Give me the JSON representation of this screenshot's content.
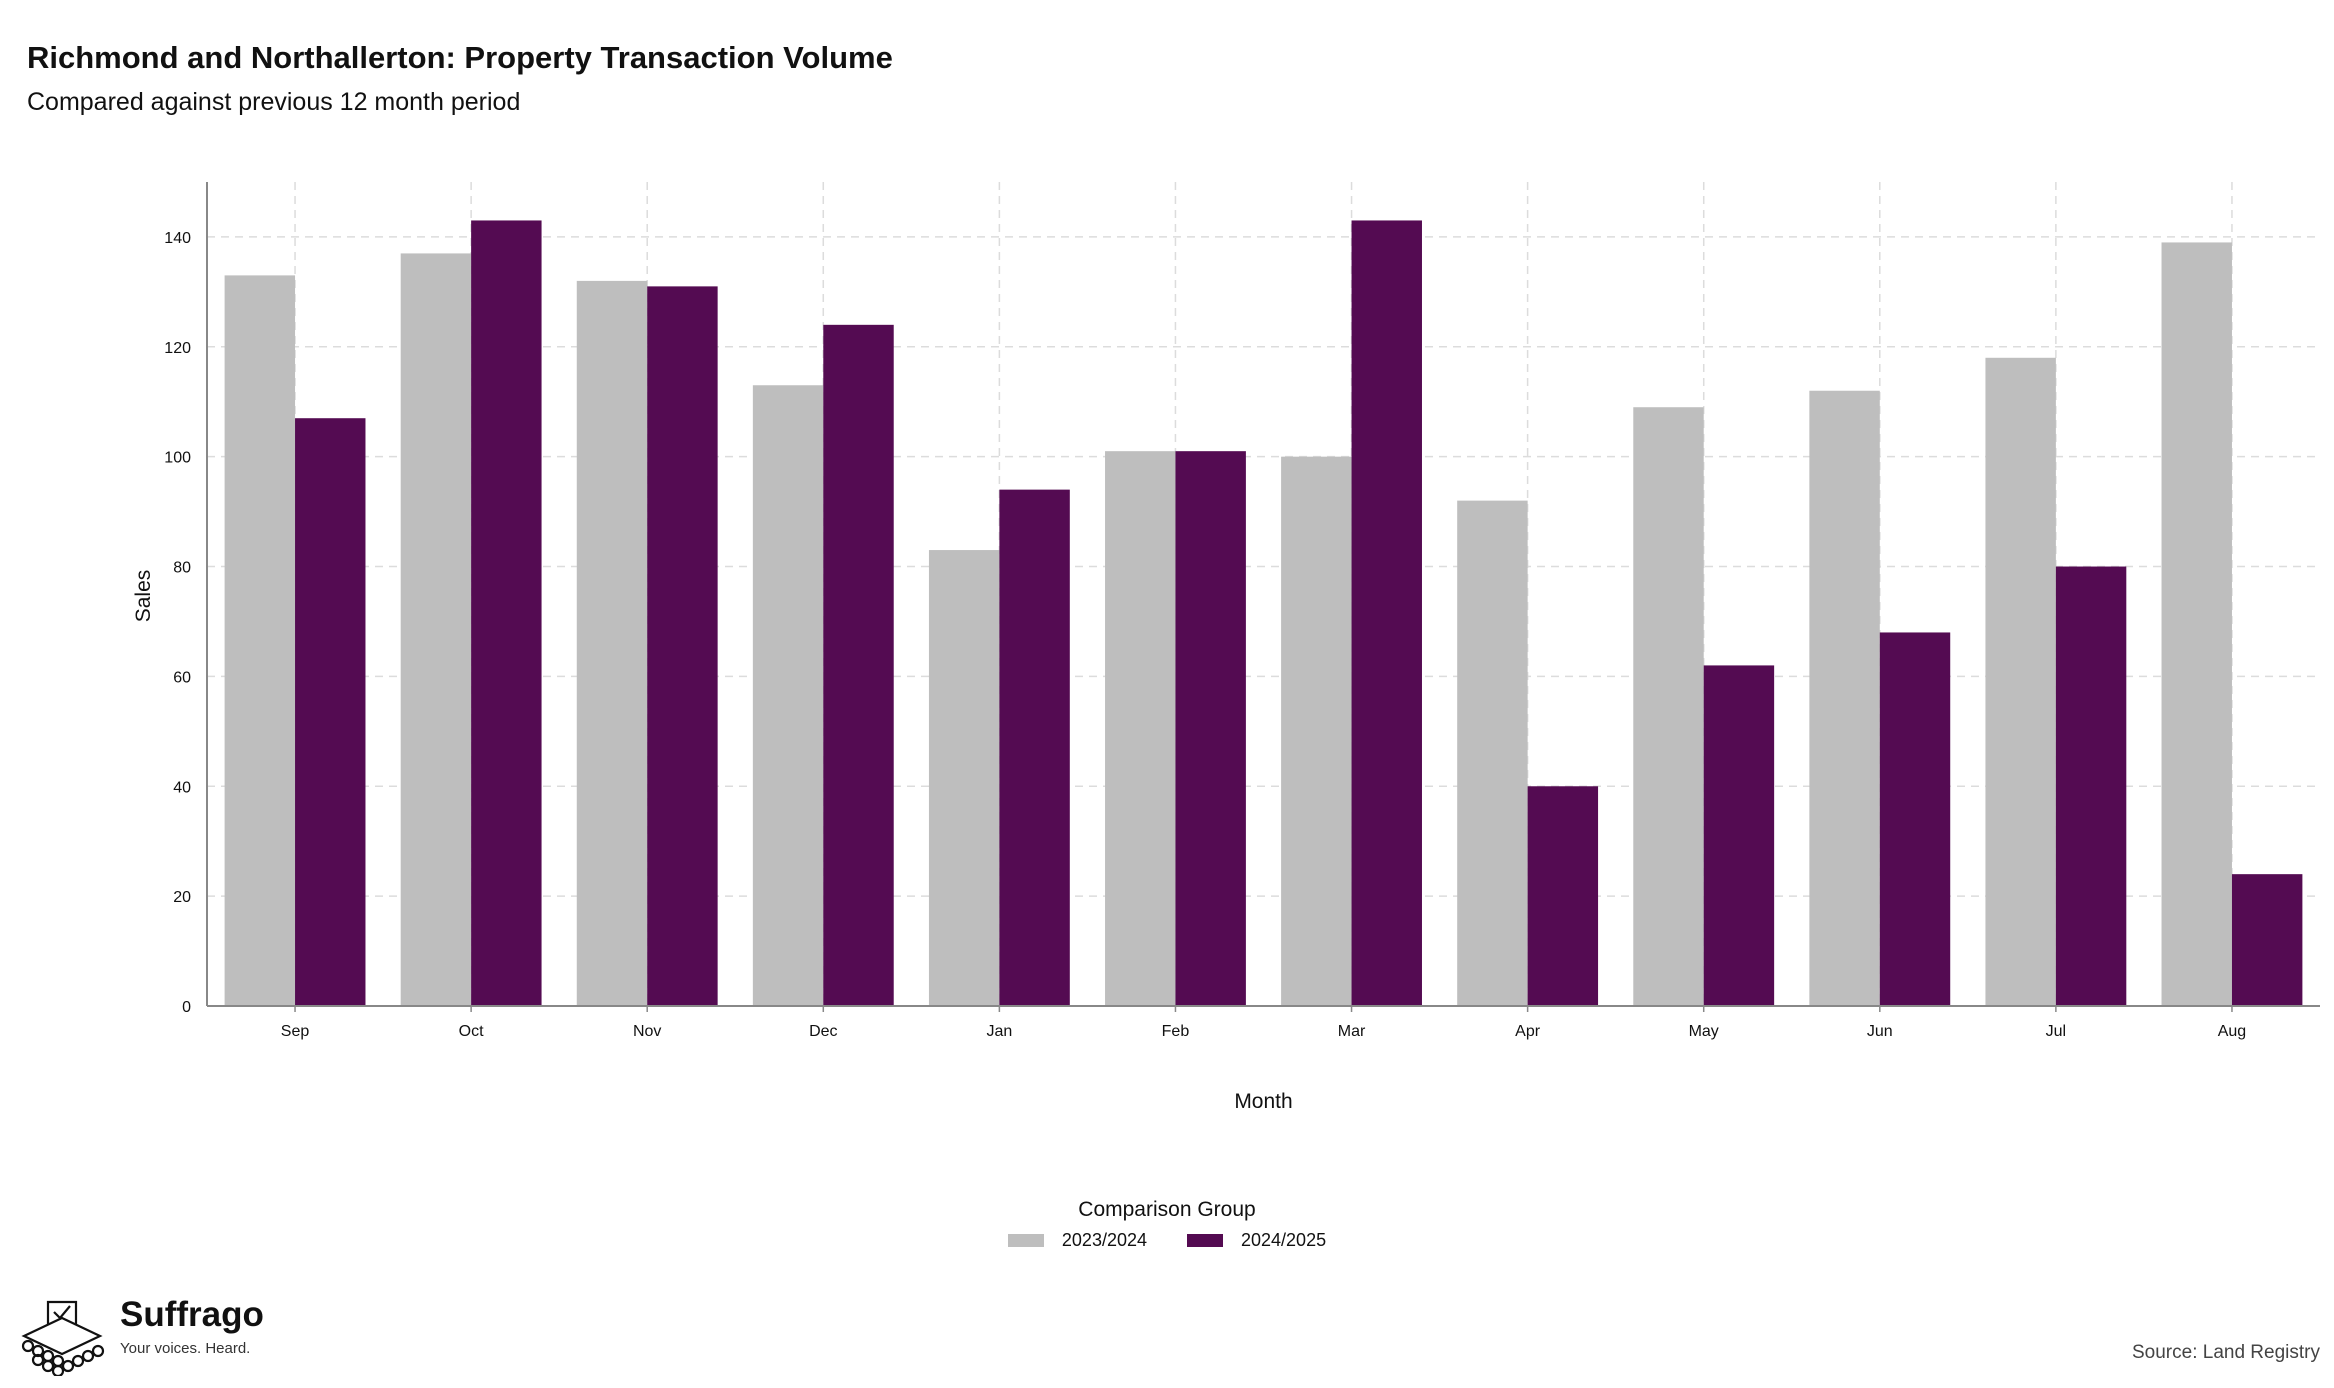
{
  "header": {
    "title": "Richmond and Northallerton: Property Transaction Volume",
    "subtitle": "Compared against previous 12 month period"
  },
  "chart_data": {
    "type": "bar",
    "categories": [
      "Sep",
      "Oct",
      "Nov",
      "Dec",
      "Jan",
      "Feb",
      "Mar",
      "Apr",
      "May",
      "Jun",
      "Jul",
      "Aug"
    ],
    "series": [
      {
        "name": "2023/2024",
        "color": "#bebebe",
        "values": [
          133,
          137,
          132,
          113,
          83,
          101,
          100,
          92,
          109,
          112,
          118,
          139
        ]
      },
      {
        "name": "2024/2025",
        "color": "#540b52",
        "values": [
          107,
          143,
          131,
          124,
          94,
          101,
          143,
          40,
          62,
          68,
          80,
          24
        ]
      }
    ],
    "xlabel": "Month",
    "ylabel": "Sales",
    "ylim": [
      0,
      150
    ],
    "yticks": [
      0,
      20,
      40,
      60,
      80,
      100,
      120,
      140
    ],
    "grid": true,
    "legend": {
      "title": "Comparison Group",
      "position": "bottom"
    }
  },
  "footer": {
    "brand_name": "Suffrago",
    "brand_tagline": "Your voices. Heard.",
    "source": "Source: Land Registry"
  }
}
